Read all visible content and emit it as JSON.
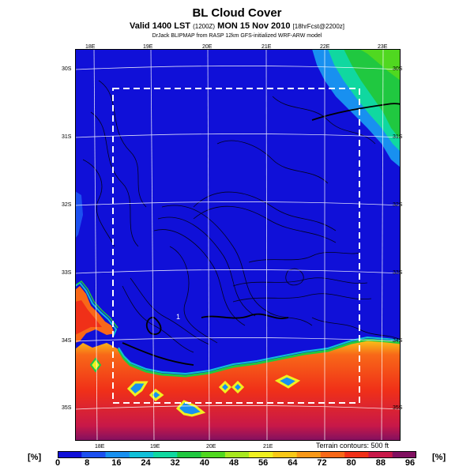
{
  "header": {
    "title": "BL Cloud Cover",
    "valid_line": "Valid 1400 LST",
    "valid_code": "(1200Z)",
    "valid_date": "MON 15 Nov 2010",
    "forecast_tag": "[18hrFcst@2200z]",
    "model_line": "DrJack BLIPMAP from RASP 12km GFS-initialized WRF-ARW model"
  },
  "map": {
    "lon_labels_top": [
      "18E",
      "19E",
      "20E",
      "21E",
      "22E",
      "23E"
    ],
    "lon_labels_bottom": [
      "18E",
      "19E",
      "20E",
      "21E"
    ],
    "lat_labels_right": [
      "30S",
      "31S",
      "32S",
      "33S",
      "34S",
      "35S"
    ],
    "lat_labels_left": [
      "30S",
      "31S",
      "32S",
      "33S",
      "34S",
      "35S"
    ],
    "terrain_note": "Terrain contours: 500 ft",
    "station_marker": "1"
  },
  "legend": {
    "unit_left": "[%]",
    "unit_right": "[%]",
    "ticks": [
      "0",
      "8",
      "16",
      "24",
      "32",
      "40",
      "48",
      "56",
      "64",
      "72",
      "80",
      "88",
      "96"
    ],
    "colors": [
      "#1010d8",
      "#1c50f0",
      "#1890f0",
      "#10c0d8",
      "#10d8a0",
      "#20c840",
      "#50d820",
      "#a8e820",
      "#f0f020",
      "#f8c818",
      "#f89818",
      "#f86818",
      "#f03018",
      "#c81848",
      "#801060"
    ]
  }
}
